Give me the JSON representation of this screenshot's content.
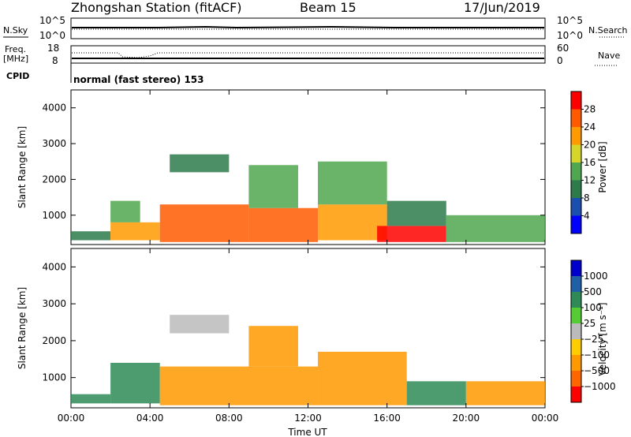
{
  "header": {
    "station": "Zhongshan Station (fitACF)",
    "beam": "Beam 15",
    "date": "17/Jun/2019"
  },
  "top_panels": {
    "nsky_label": "N.Sky",
    "nsearch_label": "N.Search",
    "noise_ticks": [
      "10^5",
      "10^0"
    ],
    "freq_label": "Freq.",
    "freq_unit": "[MHz]",
    "freq_ticks": [
      "18",
      "8"
    ],
    "nave_label": "Nave",
    "nave_ticks": [
      "60",
      "0"
    ],
    "cpid_label": "CPID",
    "cpid_text": "normal (fast stereo) 153"
  },
  "colors": {
    "power": [
      "#0000ff",
      "#1a4fb0",
      "#2d7a4a",
      "#4fa74f",
      "#d6d62a",
      "#ff9a00",
      "#ff5a00",
      "#ff0000"
    ],
    "velocity": [
      "#ff0000",
      "#ff6600",
      "#ff9900",
      "#ffcc00",
      "#bbbbbb",
      "#55cc33",
      "#2e8b57",
      "#1f5fa8",
      "#0000cc"
    ]
  },
  "chart_data": [
    {
      "type": "heatmap",
      "title": "",
      "quantity": "Power",
      "xlabel": "",
      "ylabel": "Slant Range [km]",
      "colorbar_label": "Power [dB]",
      "colorbar_ticks": [
        "4",
        "8",
        "12",
        "16",
        "20",
        "24",
        "28"
      ],
      "colorbar_range": [
        0,
        32
      ],
      "xlim": [
        0,
        24
      ],
      "ylim": [
        180,
        4500
      ],
      "x_ticks": [
        "00:00",
        "04:00",
        "08:00",
        "12:00",
        "16:00",
        "20:00",
        "00:00"
      ],
      "y_ticks": [
        "1000",
        "2000",
        "3000",
        "4000"
      ],
      "regions": [
        {
          "x": [
            0.0,
            2.0
          ],
          "y": [
            300,
            550
          ],
          "value": 9
        },
        {
          "x": [
            2.0,
            4.5
          ],
          "y": [
            300,
            800
          ],
          "value": 22
        },
        {
          "x": [
            2.0,
            3.5
          ],
          "y": [
            800,
            1400
          ],
          "value": 14
        },
        {
          "x": [
            4.5,
            9.0
          ],
          "y": [
            250,
            1300
          ],
          "value": 27
        },
        {
          "x": [
            5.0,
            8.0
          ],
          "y": [
            2200,
            2700
          ],
          "value": 9
        },
        {
          "x": [
            9.0,
            12.5
          ],
          "y": [
            250,
            1200
          ],
          "value": 26
        },
        {
          "x": [
            9.0,
            11.5
          ],
          "y": [
            1200,
            2400
          ],
          "value": 15
        },
        {
          "x": [
            12.5,
            16.0
          ],
          "y": [
            300,
            1300
          ],
          "value": 22
        },
        {
          "x": [
            12.5,
            16.0
          ],
          "y": [
            1300,
            2500
          ],
          "value": 13
        },
        {
          "x": [
            15.5,
            19.0
          ],
          "y": [
            250,
            700
          ],
          "value": 28
        },
        {
          "x": [
            16.0,
            19.0
          ],
          "y": [
            700,
            1400
          ],
          "value": 11
        },
        {
          "x": [
            19.0,
            24.0
          ],
          "y": [
            250,
            1000
          ],
          "value": 12
        }
      ]
    },
    {
      "type": "heatmap",
      "title": "",
      "quantity": "Velocity",
      "xlabel": "Time UT",
      "ylabel": "Slant Range [km]",
      "colorbar_label": "Velocity [m s⁻¹]",
      "colorbar_ticks": [
        "1000",
        "500",
        "100",
        "25",
        "−25",
        "−100",
        "−500",
        "−1000"
      ],
      "xlim": [
        0,
        24
      ],
      "ylim": [
        180,
        4500
      ],
      "x_ticks": [
        "00:00",
        "04:00",
        "08:00",
        "12:00",
        "16:00",
        "20:00",
        "00:00"
      ],
      "y_ticks": [
        "1000",
        "2000",
        "3000",
        "4000"
      ],
      "regions": [
        {
          "x": [
            0.0,
            2.0
          ],
          "y": [
            300,
            550
          ],
          "value": 400
        },
        {
          "x": [
            2.0,
            4.5
          ],
          "y": [
            300,
            1400
          ],
          "value": 200
        },
        {
          "x": [
            4.5,
            12.5
          ],
          "y": [
            250,
            1300
          ],
          "value": -150
        },
        {
          "x": [
            5.0,
            8.0
          ],
          "y": [
            2200,
            2700
          ],
          "value": 0
        },
        {
          "x": [
            9.0,
            11.5
          ],
          "y": [
            1300,
            2400
          ],
          "value": -200
        },
        {
          "x": [
            12.5,
            17.0
          ],
          "y": [
            250,
            1700
          ],
          "value": -150
        },
        {
          "x": [
            17.0,
            20.0
          ],
          "y": [
            250,
            900
          ],
          "value": 150
        },
        {
          "x": [
            20.0,
            24.0
          ],
          "y": [
            250,
            900
          ],
          "value": -100
        }
      ]
    }
  ]
}
